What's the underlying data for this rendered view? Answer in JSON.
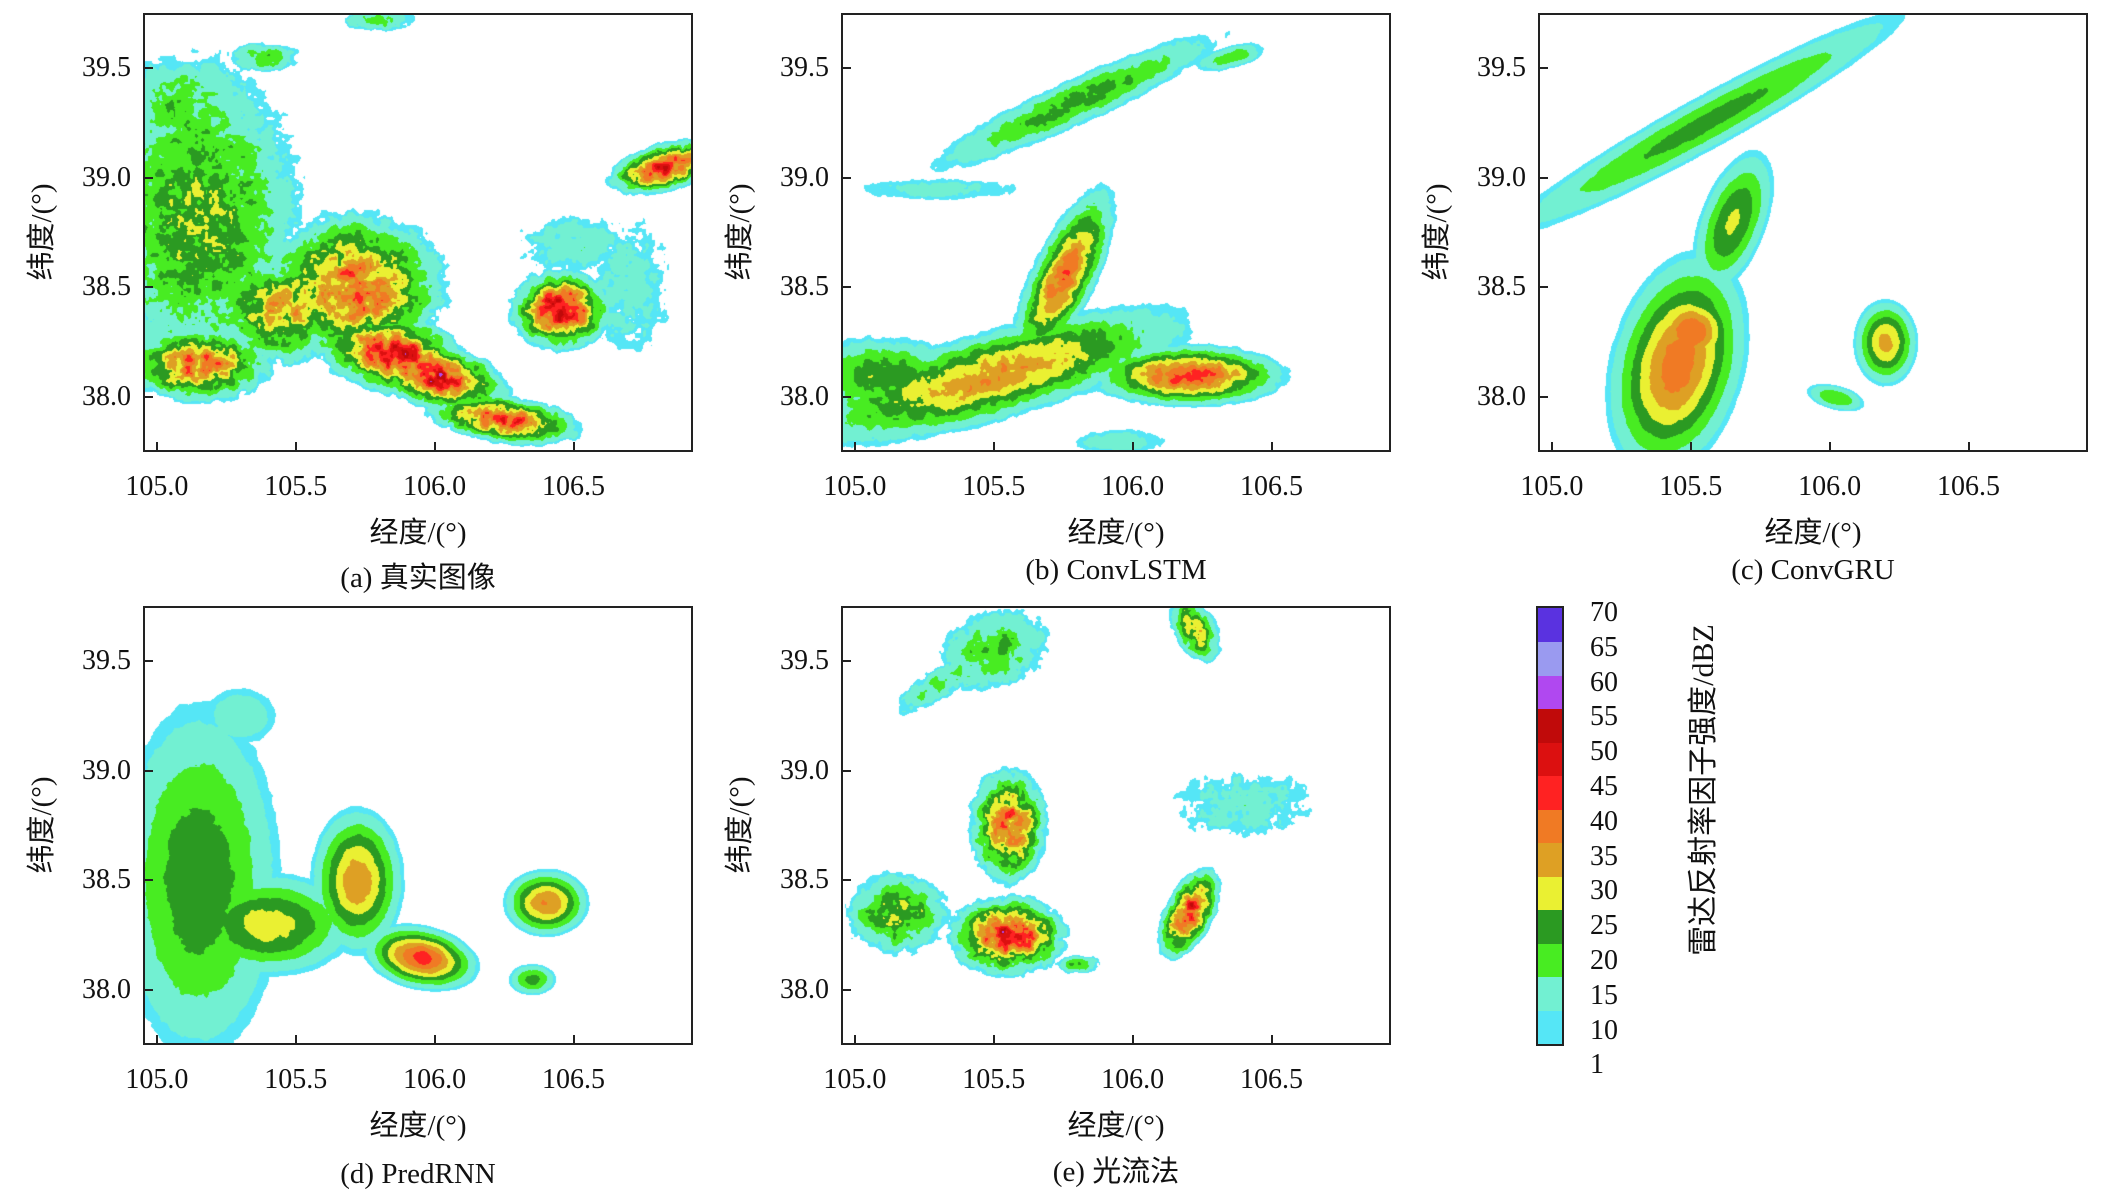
{
  "chart_data": [
    {
      "type": "heatmap",
      "caption": "(a) 真实图像",
      "xlabel": "经度/(°)",
      "ylabel": "纬度/(°)",
      "xlim": [
        104.95,
        106.93
      ],
      "ylim": [
        37.75,
        39.75
      ],
      "xticks": [
        "105.0",
        "105.5",
        "106.0",
        "106.5"
      ],
      "yticks": [
        "38.0",
        "38.5",
        "39.0",
        "39.5"
      ],
      "texture": 0.55,
      "cells": [
        [
          105.15,
          38.8,
          24,
          0.25,
          0.5,
          0
        ],
        [
          105.1,
          39.3,
          18,
          0.22,
          0.2,
          0
        ],
        [
          105.38,
          39.55,
          18,
          0.1,
          0.05,
          0
        ],
        [
          105.7,
          38.5,
          38,
          0.2,
          0.2,
          0
        ],
        [
          105.85,
          38.2,
          46,
          0.16,
          0.1,
          -20
        ],
        [
          106.0,
          38.1,
          47,
          0.15,
          0.08,
          -20
        ],
        [
          106.25,
          37.9,
          42,
          0.16,
          0.06,
          -10
        ],
        [
          105.15,
          38.15,
          38,
          0.15,
          0.1,
          0
        ],
        [
          105.45,
          38.4,
          32,
          0.15,
          0.15,
          0
        ],
        [
          106.45,
          38.4,
          48,
          0.1,
          0.1,
          0
        ],
        [
          106.83,
          39.05,
          44,
          0.12,
          0.06,
          20
        ],
        [
          105.8,
          39.72,
          18,
          0.1,
          0.04,
          0
        ],
        [
          106.5,
          38.7,
          13,
          0.18,
          0.12,
          0
        ],
        [
          106.7,
          38.5,
          12,
          0.15,
          0.3,
          0
        ]
      ]
    },
    {
      "type": "heatmap",
      "caption": "(b) ConvLSTM",
      "xlabel": "经度/(°)",
      "ylabel": "纬度/(°)",
      "xlim": [
        104.95,
        106.93
      ],
      "ylim": [
        37.75,
        39.75
      ],
      "xticks": [
        "105.0",
        "105.5",
        "106.0",
        "106.5"
      ],
      "yticks": [
        "38.0",
        "38.5",
        "39.0",
        "39.5"
      ],
      "texture": 0.3,
      "cells": [
        [
          105.8,
          39.35,
          22,
          0.42,
          0.07,
          30
        ],
        [
          106.35,
          39.55,
          18,
          0.1,
          0.04,
          20
        ],
        [
          105.3,
          38.95,
          12,
          0.3,
          0.05,
          0
        ],
        [
          105.75,
          38.55,
          38,
          0.07,
          0.25,
          -20
        ],
        [
          105.5,
          38.1,
          34,
          0.45,
          0.12,
          20
        ],
        [
          106.2,
          38.1,
          42,
          0.2,
          0.08,
          0
        ],
        [
          105.1,
          38.1,
          24,
          0.2,
          0.12,
          0
        ],
        [
          105.95,
          37.8,
          14,
          0.15,
          0.05,
          0
        ]
      ]
    },
    {
      "type": "heatmap",
      "caption": "(c) ConvGRU",
      "xlabel": "经度/(°)",
      "ylabel": "纬度/(°)",
      "xlim": [
        104.95,
        106.93
      ],
      "ylim": [
        37.75,
        39.75
      ],
      "xticks": [
        "105.0",
        "105.5",
        "106.0",
        "106.5"
      ],
      "yticks": [
        "38.0",
        "38.5",
        "39.0",
        "39.5"
      ],
      "texture": 0.05,
      "cells": [
        [
          105.55,
          39.25,
          22,
          0.62,
          0.08,
          35
        ],
        [
          105.45,
          38.15,
          38,
          0.14,
          0.3,
          -10
        ],
        [
          105.5,
          38.3,
          40,
          0.1,
          0.12,
          0
        ],
        [
          105.65,
          38.8,
          26,
          0.08,
          0.22,
          -15
        ],
        [
          106.2,
          38.25,
          32,
          0.07,
          0.12,
          0
        ],
        [
          106.02,
          38.0,
          20,
          0.08,
          0.04,
          -20
        ]
      ]
    },
    {
      "type": "heatmap",
      "caption": "(d) PredRNN",
      "xlabel": "经度/(°)",
      "ylabel": "纬度/(°)",
      "xlim": [
        104.95,
        106.93
      ],
      "ylim": [
        37.75,
        39.75
      ],
      "xticks": [
        "105.0",
        "105.5",
        "106.0",
        "106.5"
      ],
      "yticks": [
        "38.0",
        "38.5",
        "39.0",
        "39.5"
      ],
      "texture": 0.08,
      "cells": [
        [
          105.15,
          38.5,
          24,
          0.2,
          0.55,
          0
        ],
        [
          105.4,
          38.3,
          28,
          0.2,
          0.15,
          0
        ],
        [
          105.72,
          38.5,
          34,
          0.1,
          0.2,
          0
        ],
        [
          105.95,
          38.15,
          42,
          0.12,
          0.08,
          -20
        ],
        [
          106.4,
          38.4,
          36,
          0.09,
          0.09,
          0
        ],
        [
          106.35,
          38.05,
          22,
          0.06,
          0.05,
          0
        ],
        [
          105.3,
          39.25,
          14,
          0.12,
          0.12,
          0
        ]
      ]
    },
    {
      "type": "heatmap",
      "caption": "(e) 光流法",
      "xlabel": "经度/(°)",
      "ylabel": "纬度/(°)",
      "xlim": [
        104.95,
        106.93
      ],
      "ylim": [
        37.75,
        39.75
      ],
      "xticks": [
        "105.0",
        "105.5",
        "106.0",
        "106.5"
      ],
      "yticks": [
        "38.0",
        "38.5",
        "39.0",
        "39.5"
      ],
      "texture": 0.6,
      "cells": [
        [
          105.5,
          39.55,
          20,
          0.15,
          0.12,
          40
        ],
        [
          105.3,
          39.4,
          18,
          0.15,
          0.05,
          40
        ],
        [
          105.55,
          38.75,
          40,
          0.08,
          0.15,
          0
        ],
        [
          105.55,
          38.25,
          44,
          0.12,
          0.1,
          0
        ],
        [
          105.15,
          38.35,
          26,
          0.12,
          0.12,
          0
        ],
        [
          106.2,
          38.35,
          44,
          0.05,
          0.12,
          -20
        ],
        [
          106.4,
          38.85,
          12,
          0.25,
          0.15,
          0
        ],
        [
          106.22,
          39.65,
          30,
          0.05,
          0.1,
          20
        ],
        [
          105.8,
          38.12,
          20,
          0.06,
          0.03,
          0
        ]
      ]
    }
  ],
  "colorbar": {
    "title": "雷达反射率因子强度/dBZ",
    "levels": [
      1,
      10,
      15,
      20,
      25,
      30,
      35,
      40,
      45,
      50,
      55,
      60,
      65,
      70
    ],
    "labels": [
      "70",
      "65",
      "60",
      "55",
      "50",
      "45",
      "40",
      "35",
      "30",
      "25",
      "20",
      "15",
      "10",
      "1"
    ],
    "colors": [
      "#55e6f6",
      "#72f0d2",
      "#48ec22",
      "#2b9a22",
      "#eaf032",
      "#dea024",
      "#f07a24",
      "#ff2222",
      "#dc1010",
      "#c00a0a",
      "#b048f0",
      "#9a9af0",
      "#5a32e0"
    ]
  }
}
